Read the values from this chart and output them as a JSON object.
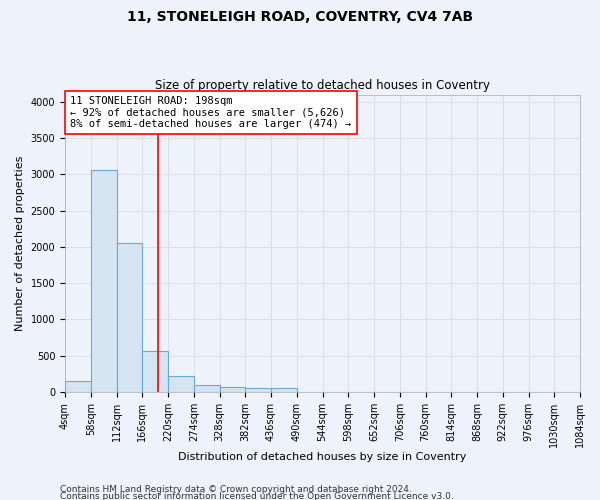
{
  "title1": "11, STONELEIGH ROAD, COVENTRY, CV4 7AB",
  "title2": "Size of property relative to detached houses in Coventry",
  "xlabel": "Distribution of detached houses by size in Coventry",
  "ylabel": "Number of detached properties",
  "bin_edges": [
    4,
    58,
    112,
    166,
    220,
    274,
    328,
    382,
    436,
    490,
    544,
    598,
    652,
    706,
    760,
    814,
    868,
    922,
    976,
    1030,
    1084
  ],
  "bar_heights": [
    150,
    3060,
    2060,
    560,
    220,
    100,
    70,
    50,
    50,
    5,
    5,
    5,
    5,
    5,
    5,
    5,
    5,
    5,
    5,
    5
  ],
  "bar_color": "#d4e4f0",
  "bar_edgecolor": "#6aaad4",
  "bar_linewidth": 0.8,
  "vline_x": 198,
  "vline_color": "red",
  "vline_linewidth": 1.2,
  "annotation_text": "11 STONELEIGH ROAD: 198sqm\n← 92% of detached houses are smaller (5,626)\n8% of semi-detached houses are larger (474) →",
  "annotation_fontsize": 7.5,
  "ylim": [
    0,
    4100
  ],
  "yticks": [
    0,
    500,
    1000,
    1500,
    2000,
    2500,
    3000,
    3500,
    4000
  ],
  "background_color": "#eef2fb",
  "grid_color": "#d8dce8",
  "footer1": "Contains HM Land Registry data © Crown copyright and database right 2024.",
  "footer2": "Contains public sector information licensed under the Open Government Licence v3.0.",
  "title1_fontsize": 10,
  "title2_fontsize": 8.5,
  "xlabel_fontsize": 8,
  "ylabel_fontsize": 8,
  "tick_fontsize": 7,
  "footer_fontsize": 6.5
}
